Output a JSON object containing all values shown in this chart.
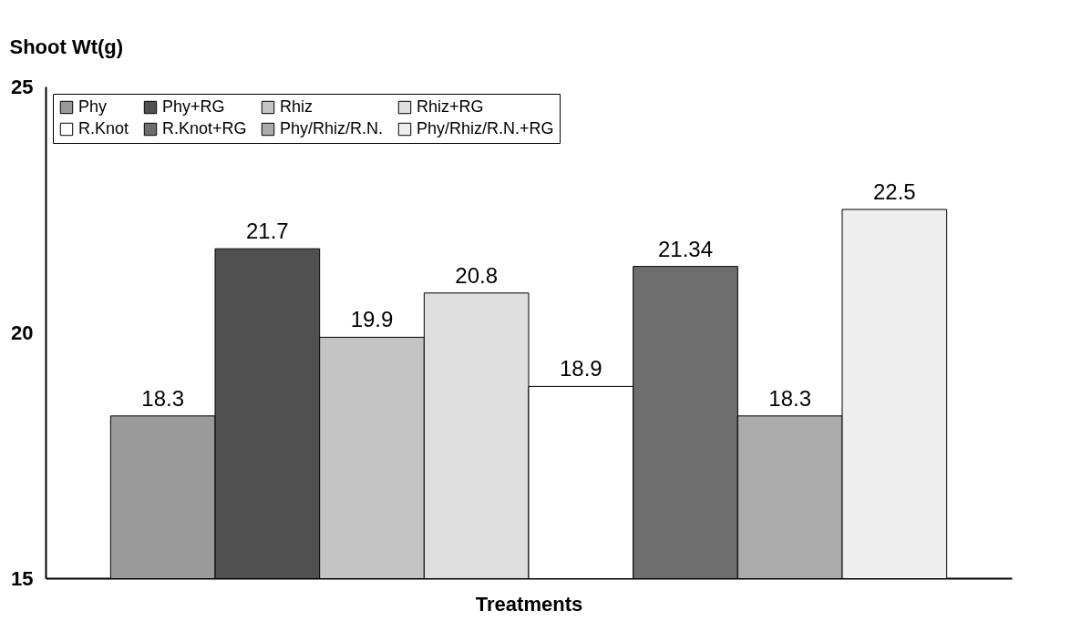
{
  "chart_data": {
    "type": "bar",
    "ylabel": "Shoot Wt(g)",
    "xlabel": "Treatments",
    "categories": [
      null
    ],
    "series": [
      {
        "name": "Phy",
        "color": "#9a9a9a",
        "values": [
          18.3
        ]
      },
      {
        "name": "Phy+RG",
        "color": "#505050",
        "values": [
          21.7
        ]
      },
      {
        "name": "Rhiz",
        "color": "#c4c4c4",
        "values": [
          19.9
        ]
      },
      {
        "name": "Rhiz+RG",
        "color": "#dedede",
        "values": [
          20.8
        ]
      },
      {
        "name": "R.Knot",
        "color": "#ffffff",
        "values": [
          18.9
        ]
      },
      {
        "name": "R.Knot+RG",
        "color": "#6e6e6e",
        "values": [
          21.34
        ]
      },
      {
        "name": "Phy/Rhiz/R.N.",
        "color": "#ababab",
        "values": [
          18.3
        ]
      },
      {
        "name": "Phy/Rhiz/R.N.+RG",
        "color": "#eeeeee",
        "values": [
          22.5
        ]
      }
    ],
    "ylim": [
      15,
      25
    ],
    "yticks": [
      15,
      20,
      25
    ],
    "data_labels": true,
    "legend": "top left",
    "grid": false
  }
}
